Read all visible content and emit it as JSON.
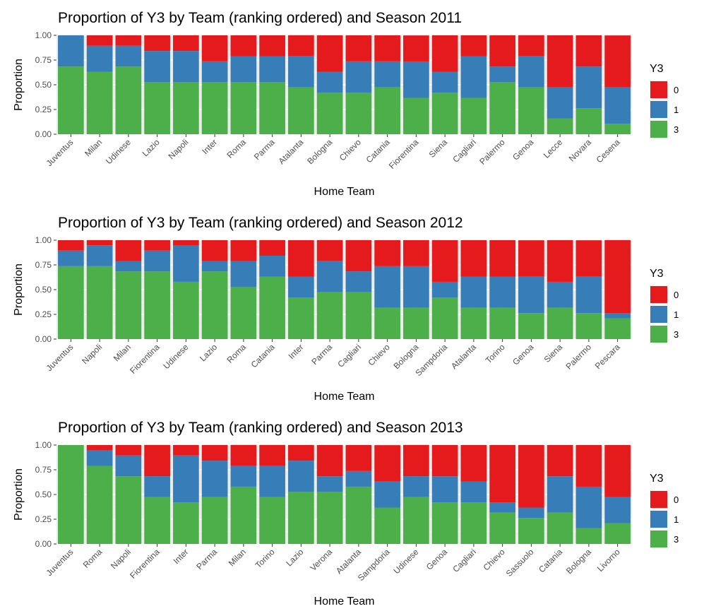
{
  "legend": {
    "title": "Y3",
    "entries": [
      {
        "label": "0",
        "color": "#E41A1C"
      },
      {
        "label": "1",
        "color": "#377EB8"
      },
      {
        "label": "3",
        "color": "#4DAF4A"
      }
    ]
  },
  "chart_data": [
    {
      "type": "bar",
      "stacked": true,
      "title": "Proportion of Y3 by Team (ranking ordered) and Season 2011",
      "xlabel": "Home Team",
      "ylabel": "Proportion",
      "ylim": [
        0,
        1
      ],
      "yticks": [
        "0.00",
        "0.25",
        "0.50",
        "0.75",
        "1.00"
      ],
      "grid": true,
      "legend_position": "right",
      "categories": [
        "Juventus",
        "Milan",
        "Udinese",
        "Lazio",
        "Napoli",
        "Inter",
        "Roma",
        "Parma",
        "Atalanta",
        "Bologna",
        "Chievo",
        "Catania",
        "Fiorentina",
        "Siena",
        "Cagliari",
        "Palermo",
        "Genoa",
        "Lecce",
        "Novara",
        "Cesena"
      ],
      "series": [
        {
          "name": "3",
          "color": "#4DAF4A",
          "values": [
            0.684,
            0.632,
            0.684,
            0.526,
            0.526,
            0.526,
            0.526,
            0.526,
            0.474,
            0.421,
            0.421,
            0.474,
            0.368,
            0.421,
            0.368,
            0.526,
            0.474,
            0.158,
            0.263,
            0.105
          ]
        },
        {
          "name": "1",
          "color": "#377EB8",
          "values": [
            0.316,
            0.263,
            0.211,
            0.316,
            0.316,
            0.211,
            0.263,
            0.263,
            0.316,
            0.211,
            0.316,
            0.263,
            0.368,
            0.211,
            0.421,
            0.158,
            0.316,
            0.316,
            0.421,
            0.368
          ]
        },
        {
          "name": "0",
          "color": "#E41A1C",
          "values": [
            0.0,
            0.105,
            0.105,
            0.158,
            0.158,
            0.263,
            0.211,
            0.211,
            0.211,
            0.368,
            0.263,
            0.263,
            0.263,
            0.368,
            0.211,
            0.316,
            0.211,
            0.526,
            0.316,
            0.526
          ]
        }
      ]
    },
    {
      "type": "bar",
      "stacked": true,
      "title": "Proportion of Y3 by Team (ranking ordered) and Season 2012",
      "xlabel": "Home Team",
      "ylabel": "Proportion",
      "ylim": [
        0,
        1
      ],
      "yticks": [
        "0.00",
        "0.25",
        "0.50",
        "0.75",
        "1.00"
      ],
      "grid": true,
      "legend_position": "right",
      "categories": [
        "Juventus",
        "Napoli",
        "Milan",
        "Fiorentina",
        "Udinese",
        "Lazio",
        "Roma",
        "Catania",
        "Inter",
        "Parma",
        "Cagliari",
        "Chievo",
        "Bologna",
        "Sampdoria",
        "Atalanta",
        "Torino",
        "Genoa",
        "Siena",
        "Palermo",
        "Pescara"
      ],
      "series": [
        {
          "name": "3",
          "color": "#4DAF4A",
          "values": [
            0.737,
            0.737,
            0.684,
            0.684,
            0.579,
            0.684,
            0.526,
            0.632,
            0.421,
            0.474,
            0.474,
            0.316,
            0.316,
            0.421,
            0.316,
            0.316,
            0.263,
            0.316,
            0.263,
            0.211
          ]
        },
        {
          "name": "1",
          "color": "#377EB8",
          "values": [
            0.158,
            0.211,
            0.105,
            0.211,
            0.368,
            0.105,
            0.263,
            0.211,
            0.211,
            0.316,
            0.211,
            0.421,
            0.421,
            0.158,
            0.316,
            0.316,
            0.368,
            0.263,
            0.368,
            0.053
          ]
        },
        {
          "name": "0",
          "color": "#E41A1C",
          "values": [
            0.105,
            0.053,
            0.211,
            0.105,
            0.053,
            0.211,
            0.211,
            0.158,
            0.368,
            0.211,
            0.316,
            0.263,
            0.263,
            0.421,
            0.368,
            0.368,
            0.368,
            0.421,
            0.368,
            0.737
          ]
        }
      ]
    },
    {
      "type": "bar",
      "stacked": true,
      "title": "Proportion of Y3 by Team (ranking ordered) and Season 2013",
      "xlabel": "Home Team",
      "ylabel": "Proportion",
      "ylim": [
        0,
        1
      ],
      "yticks": [
        "0.00",
        "0.25",
        "0.50",
        "0.75",
        "1.00"
      ],
      "grid": true,
      "legend_position": "right",
      "categories": [
        "Juventus",
        "Roma",
        "Napoli",
        "Fiorentina",
        "Inter",
        "Parma",
        "Milan",
        "Torino",
        "Lazio",
        "Verona",
        "Atalanta",
        "Sampdoria",
        "Udinese",
        "Genoa",
        "Cagliari",
        "Chievo",
        "Sassuolo",
        "Catania",
        "Bologna",
        "Livorno"
      ],
      "series": [
        {
          "name": "3",
          "color": "#4DAF4A",
          "values": [
            1.0,
            0.789,
            0.684,
            0.474,
            0.421,
            0.474,
            0.579,
            0.474,
            0.526,
            0.526,
            0.579,
            0.368,
            0.474,
            0.421,
            0.421,
            0.316,
            0.263,
            0.316,
            0.158,
            0.211
          ]
        },
        {
          "name": "1",
          "color": "#377EB8",
          "values": [
            0.0,
            0.158,
            0.211,
            0.211,
            0.474,
            0.368,
            0.211,
            0.316,
            0.316,
            0.158,
            0.158,
            0.263,
            0.211,
            0.263,
            0.211,
            0.105,
            0.105,
            0.368,
            0.421,
            0.263
          ]
        },
        {
          "name": "0",
          "color": "#E41A1C",
          "values": [
            0.0,
            0.053,
            0.105,
            0.316,
            0.105,
            0.158,
            0.211,
            0.211,
            0.158,
            0.316,
            0.263,
            0.368,
            0.316,
            0.316,
            0.368,
            0.579,
            0.632,
            0.316,
            0.421,
            0.526
          ]
        }
      ]
    }
  ]
}
